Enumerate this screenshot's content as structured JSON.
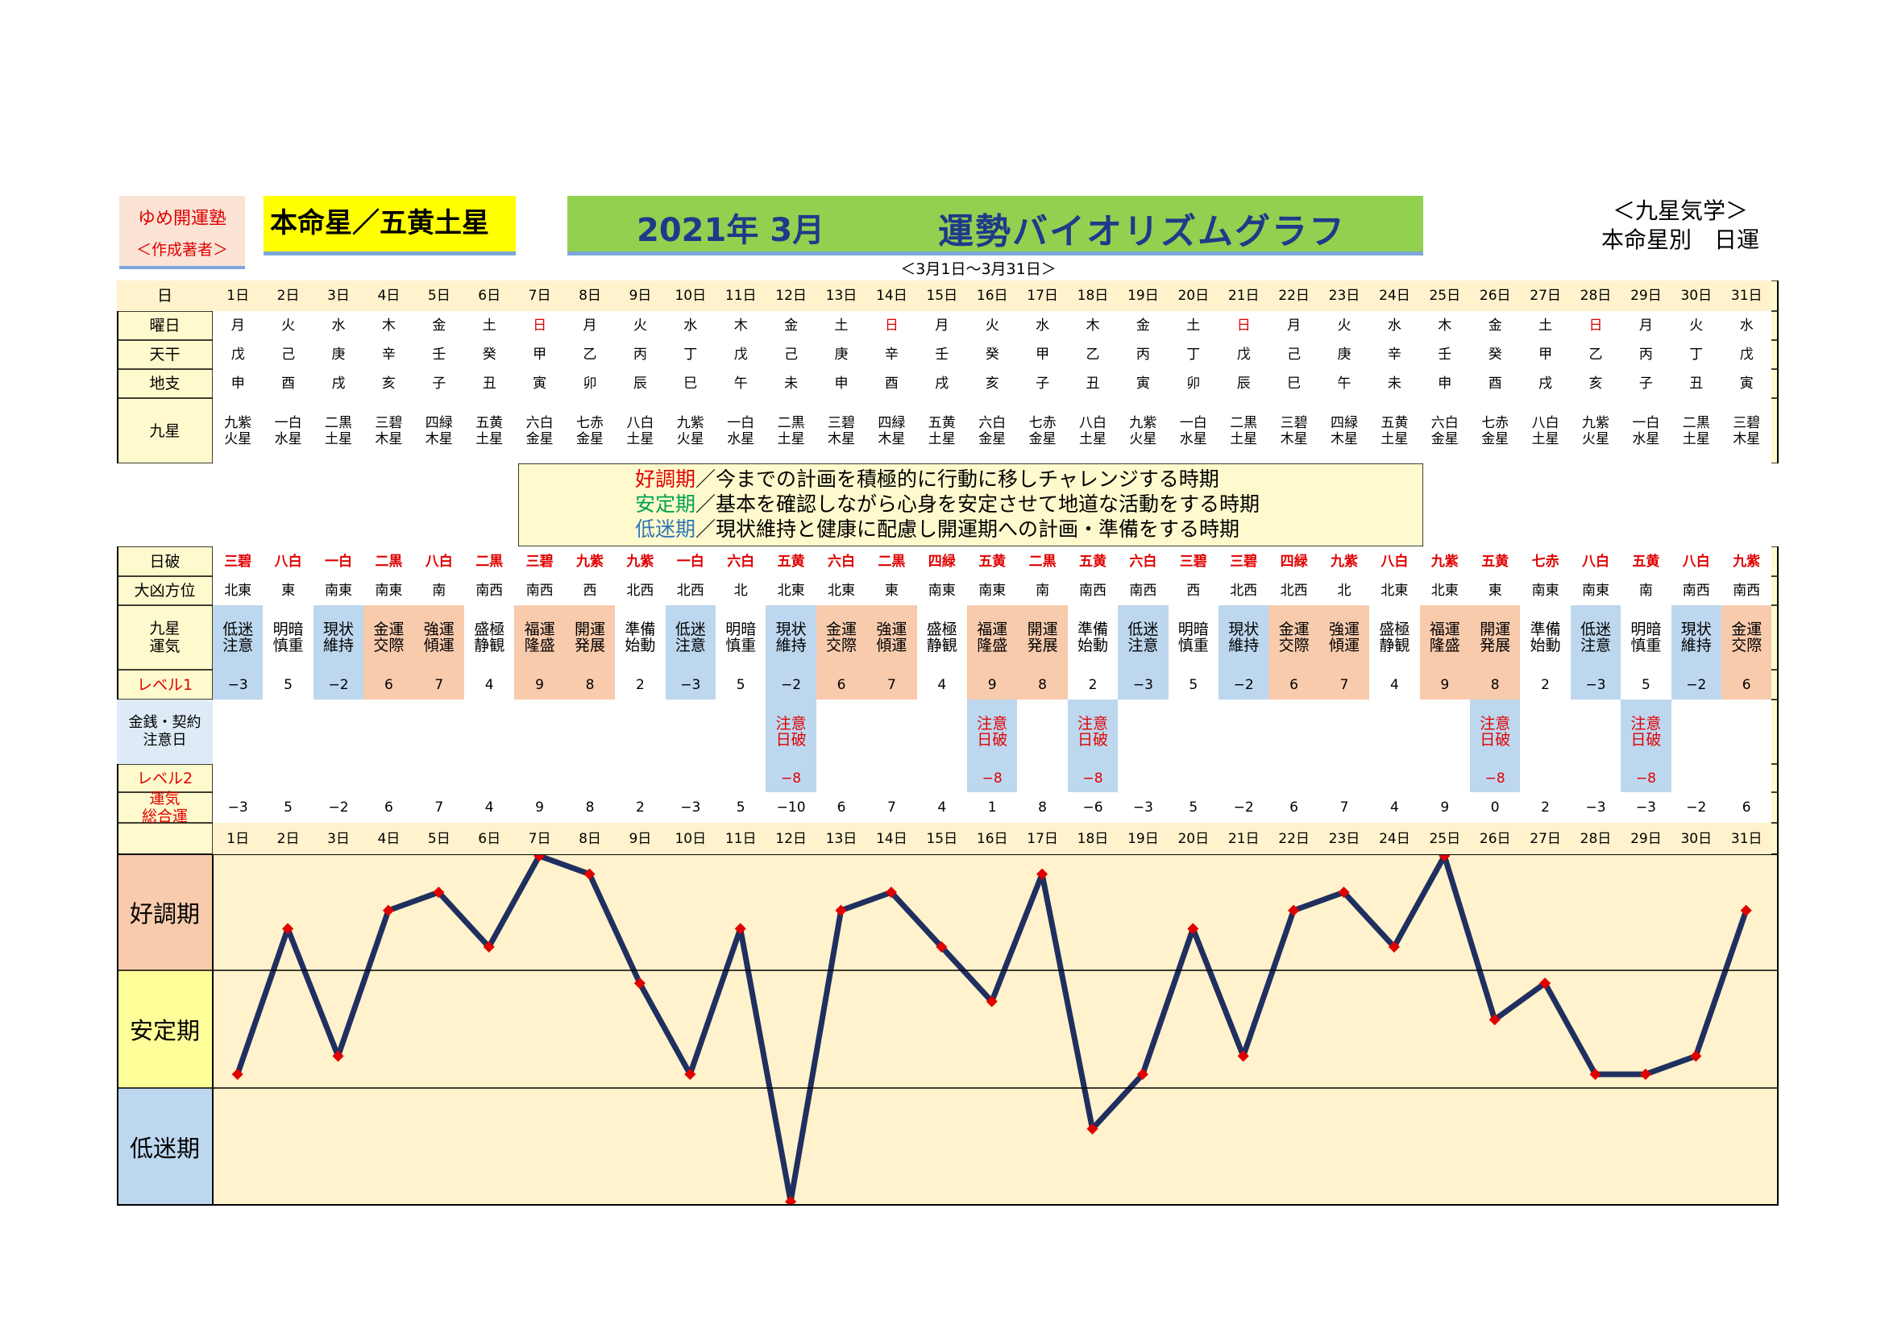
{
  "header": {
    "author_line1": "ゆめ開運塾",
    "author_line2": "＜作成著者＞",
    "honmei": "本命星／五黄土星",
    "title_left": "2021年 3月",
    "title_right": "運勢バイオリズムグラフ",
    "range": "＜3月1日～3月31日＞",
    "kyusei_line1": "＜九星気学＞",
    "kyusei_line2": "本命星別　日運"
  },
  "row_labels": {
    "day": "日",
    "weekday": "曜日",
    "tenkan": "天干",
    "chishi": "地支",
    "kyusei": "九星",
    "nippa": "日破",
    "direction": "大凶方位",
    "fortune_line1": "九星",
    "fortune_line2": "運気",
    "level1": "レベル1",
    "money_line1": "金銭・契約",
    "money_line2": "注意日",
    "level2": "レベル2",
    "total_line1": "運気",
    "total_line2": "総合運"
  },
  "legend": {
    "good_term": "好調期",
    "good_text": "／今までの計画を積極的に行動に移しチャレンジする時期",
    "stable_term": "安定期",
    "stable_text": "／基本を確認しながら心身を安定させて地道な活動をする時期",
    "low_term": "低迷期",
    "low_text": "／現状維持と健康に配慮し開運期への計画・準備をする時期"
  },
  "zones": [
    "好調期",
    "安定期",
    "低迷期"
  ],
  "colors": {
    "line": "#1f2f5f",
    "marker": "#e00000",
    "good": "#f8cbad",
    "stable": "#ffff99",
    "low": "#bdd7ee",
    "chart_bg": "#fff2cc",
    "table_bg": "#fffacd",
    "accent_red": "#e00000"
  },
  "days": [
    "1日",
    "2日",
    "3日",
    "4日",
    "5日",
    "6日",
    "7日",
    "8日",
    "9日",
    "10日",
    "11日",
    "12日",
    "13日",
    "14日",
    "15日",
    "16日",
    "17日",
    "18日",
    "19日",
    "20日",
    "21日",
    "22日",
    "23日",
    "24日",
    "25日",
    "26日",
    "27日",
    "28日",
    "29日",
    "30日",
    "31日"
  ],
  "weekdays": [
    "月",
    "火",
    "水",
    "木",
    "金",
    "土",
    "日",
    "月",
    "火",
    "水",
    "木",
    "金",
    "土",
    "日",
    "月",
    "火",
    "水",
    "木",
    "金",
    "土",
    "日",
    "月",
    "火",
    "水",
    "木",
    "金",
    "土",
    "日",
    "月",
    "火",
    "水"
  ],
  "tenkan": [
    "戊",
    "己",
    "庚",
    "辛",
    "壬",
    "癸",
    "甲",
    "乙",
    "丙",
    "丁",
    "戊",
    "己",
    "庚",
    "辛",
    "壬",
    "癸",
    "甲",
    "乙",
    "丙",
    "丁",
    "戊",
    "己",
    "庚",
    "辛",
    "壬",
    "癸",
    "甲",
    "乙",
    "丙",
    "丁",
    "戊"
  ],
  "chishi": [
    "申",
    "酉",
    "戌",
    "亥",
    "子",
    "丑",
    "寅",
    "卯",
    "辰",
    "巳",
    "午",
    "未",
    "申",
    "酉",
    "戌",
    "亥",
    "子",
    "丑",
    "寅",
    "卯",
    "辰",
    "巳",
    "午",
    "未",
    "申",
    "酉",
    "戌",
    "亥",
    "子",
    "丑",
    "寅"
  ],
  "kyusei_top": [
    "九紫",
    "一白",
    "二黒",
    "三碧",
    "四緑",
    "五黄",
    "六白",
    "七赤",
    "八白",
    "九紫",
    "一白",
    "二黒",
    "三碧",
    "四緑",
    "五黄",
    "六白",
    "七赤",
    "八白",
    "九紫",
    "一白",
    "二黒",
    "三碧",
    "四緑",
    "五黄",
    "六白",
    "七赤",
    "八白",
    "九紫",
    "一白",
    "二黒",
    "三碧"
  ],
  "kyusei_bottom": [
    "火星",
    "水星",
    "土星",
    "木星",
    "木星",
    "土星",
    "金星",
    "金星",
    "土星",
    "火星",
    "水星",
    "土星",
    "木星",
    "木星",
    "土星",
    "金星",
    "金星",
    "土星",
    "火星",
    "水星",
    "土星",
    "木星",
    "木星",
    "土星",
    "金星",
    "金星",
    "土星",
    "火星",
    "水星",
    "土星",
    "木星"
  ],
  "nippa": [
    "三碧",
    "八白",
    "一白",
    "二黒",
    "八白",
    "二黒",
    "三碧",
    "九紫",
    "九紫",
    "一白",
    "六白",
    "五黄",
    "六白",
    "二黒",
    "四緑",
    "五黄",
    "二黒",
    "五黄",
    "六白",
    "三碧",
    "三碧",
    "四緑",
    "九紫",
    "八白",
    "九紫",
    "五黄",
    "七赤",
    "八白",
    "五黄",
    "八白",
    "九紫"
  ],
  "directions": [
    "北東",
    "東",
    "南東",
    "南東",
    "南",
    "南西",
    "南西",
    "西",
    "北西",
    "北西",
    "北",
    "北東",
    "北東",
    "東",
    "南東",
    "南東",
    "南",
    "南西",
    "南西",
    "西",
    "北西",
    "北西",
    "北",
    "北東",
    "北東",
    "東",
    "南東",
    "南東",
    "南",
    "南西",
    "南西"
  ],
  "fortune_top": [
    "低迷",
    "明暗",
    "現状",
    "金運",
    "強運",
    "盛極",
    "福運",
    "開運",
    "準備",
    "低迷",
    "明暗",
    "現状",
    "金運",
    "強運",
    "盛極",
    "福運",
    "開運",
    "準備",
    "低迷",
    "明暗",
    "現状",
    "金運",
    "強運",
    "盛極",
    "福運",
    "開運",
    "準備",
    "低迷",
    "明暗",
    "現状",
    "金運"
  ],
  "fortune_bottom": [
    "注意",
    "慎重",
    "維持",
    "交際",
    "傾運",
    "静観",
    "隆盛",
    "発展",
    "始動",
    "注意",
    "慎重",
    "維持",
    "交際",
    "傾運",
    "静観",
    "隆盛",
    "発展",
    "始動",
    "注意",
    "慎重",
    "維持",
    "交際",
    "傾運",
    "静観",
    "隆盛",
    "発展",
    "始動",
    "注意",
    "慎重",
    "維持",
    "交際"
  ],
  "level1": [
    "−3",
    "5",
    "−2",
    "6",
    "7",
    "4",
    "9",
    "8",
    "2",
    "−3",
    "5",
    "−2",
    "6",
    "7",
    "4",
    "9",
    "8",
    "2",
    "−3",
    "5",
    "−2",
    "6",
    "7",
    "4",
    "9",
    "8",
    "2",
    "−3",
    "5",
    "−2",
    "6"
  ],
  "money_caution_line1": "注意",
  "money_caution_line2": "日破",
  "caution_days": [
    12,
    16,
    18,
    26,
    29
  ],
  "level2_value": "−8",
  "total": [
    "−3",
    "5",
    "−2",
    "6",
    "7",
    "4",
    "9",
    "8",
    "2",
    "−3",
    "5",
    "−10",
    "6",
    "7",
    "4",
    "1",
    "8",
    "−6",
    "−3",
    "5",
    "−2",
    "6",
    "7",
    "4",
    "9",
    "0",
    "2",
    "−3",
    "−3",
    "−2",
    "6"
  ],
  "chart_data": {
    "type": "line",
    "x": [
      "1日",
      "2日",
      "3日",
      "4日",
      "5日",
      "6日",
      "7日",
      "8日",
      "9日",
      "10日",
      "11日",
      "12日",
      "13日",
      "14日",
      "15日",
      "16日",
      "17日",
      "18日",
      "19日",
      "20日",
      "21日",
      "22日",
      "23日",
      "24日",
      "25日",
      "26日",
      "27日",
      "28日",
      "29日",
      "30日",
      "31日"
    ],
    "series": [
      {
        "values": [
          -3,
          5,
          -2,
          6,
          7,
          4,
          9,
          8,
          2,
          -3,
          5,
          -10,
          6,
          7,
          4,
          1,
          8,
          -6,
          -3,
          5,
          -2,
          6,
          7,
          4,
          9,
          0,
          2,
          -3,
          -3,
          -2,
          6
        ]
      }
    ],
    "ylim": [
      -10,
      9
    ],
    "bands": [
      "好調期",
      "安定期",
      "低迷期"
    ],
    "grid": false
  }
}
